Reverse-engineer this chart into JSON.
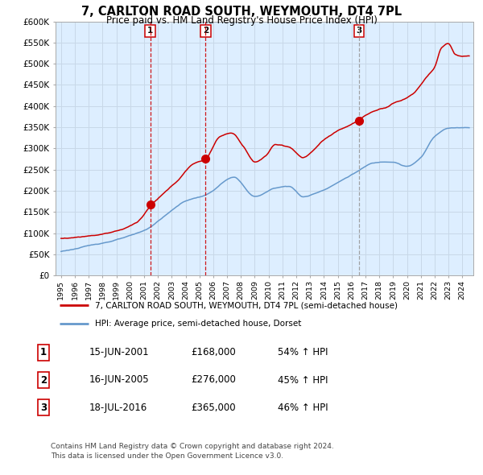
{
  "title": "7, CARLTON ROAD SOUTH, WEYMOUTH, DT4 7PL",
  "subtitle": "Price paid vs. HM Land Registry's House Price Index (HPI)",
  "legend_line1": "7, CARLTON ROAD SOUTH, WEYMOUTH, DT4 7PL (semi-detached house)",
  "legend_line2": "HPI: Average price, semi-detached house, Dorset",
  "red_color": "#cc0000",
  "blue_color": "#6699cc",
  "bg_color": "#ddeeff",
  "grid_color": "#c8d8e8",
  "sales": [
    {
      "label": "1",
      "date": "15-JUN-2001",
      "price": 168000,
      "x_year": 2001.45
    },
    {
      "label": "2",
      "date": "16-JUN-2005",
      "price": 276000,
      "x_year": 2005.45
    },
    {
      "label": "3",
      "date": "18-JUL-2016",
      "price": 365000,
      "x_year": 2016.55
    }
  ],
  "table_rows": [
    [
      "1",
      "15-JUN-2001",
      "£168,000",
      "54% ↑ HPI"
    ],
    [
      "2",
      "16-JUN-2005",
      "£276,000",
      "45% ↑ HPI"
    ],
    [
      "3",
      "18-JUL-2016",
      "£365,000",
      "46% ↑ HPI"
    ]
  ],
  "footer": "Contains HM Land Registry data © Crown copyright and database right 2024.\nThis data is licensed under the Open Government Licence v3.0.",
  "ylim": [
    0,
    600000
  ],
  "ytick_vals": [
    0,
    50000,
    100000,
    150000,
    200000,
    250000,
    300000,
    350000,
    400000,
    450000,
    500000,
    550000,
    600000
  ],
  "ytick_labels": [
    "£0",
    "£50K",
    "£100K",
    "£150K",
    "£200K",
    "£250K",
    "£300K",
    "£350K",
    "£400K",
    "£450K",
    "£500K",
    "£550K",
    "£600K"
  ],
  "xlim_start": 1994.6,
  "xlim_end": 2024.8,
  "xtick_years": [
    1995,
    1996,
    1997,
    1998,
    1999,
    2000,
    2001,
    2002,
    2003,
    2004,
    2005,
    2006,
    2007,
    2008,
    2009,
    2010,
    2011,
    2012,
    2013,
    2014,
    2015,
    2016,
    2017,
    2018,
    2019,
    2020,
    2021,
    2022,
    2023,
    2024
  ]
}
